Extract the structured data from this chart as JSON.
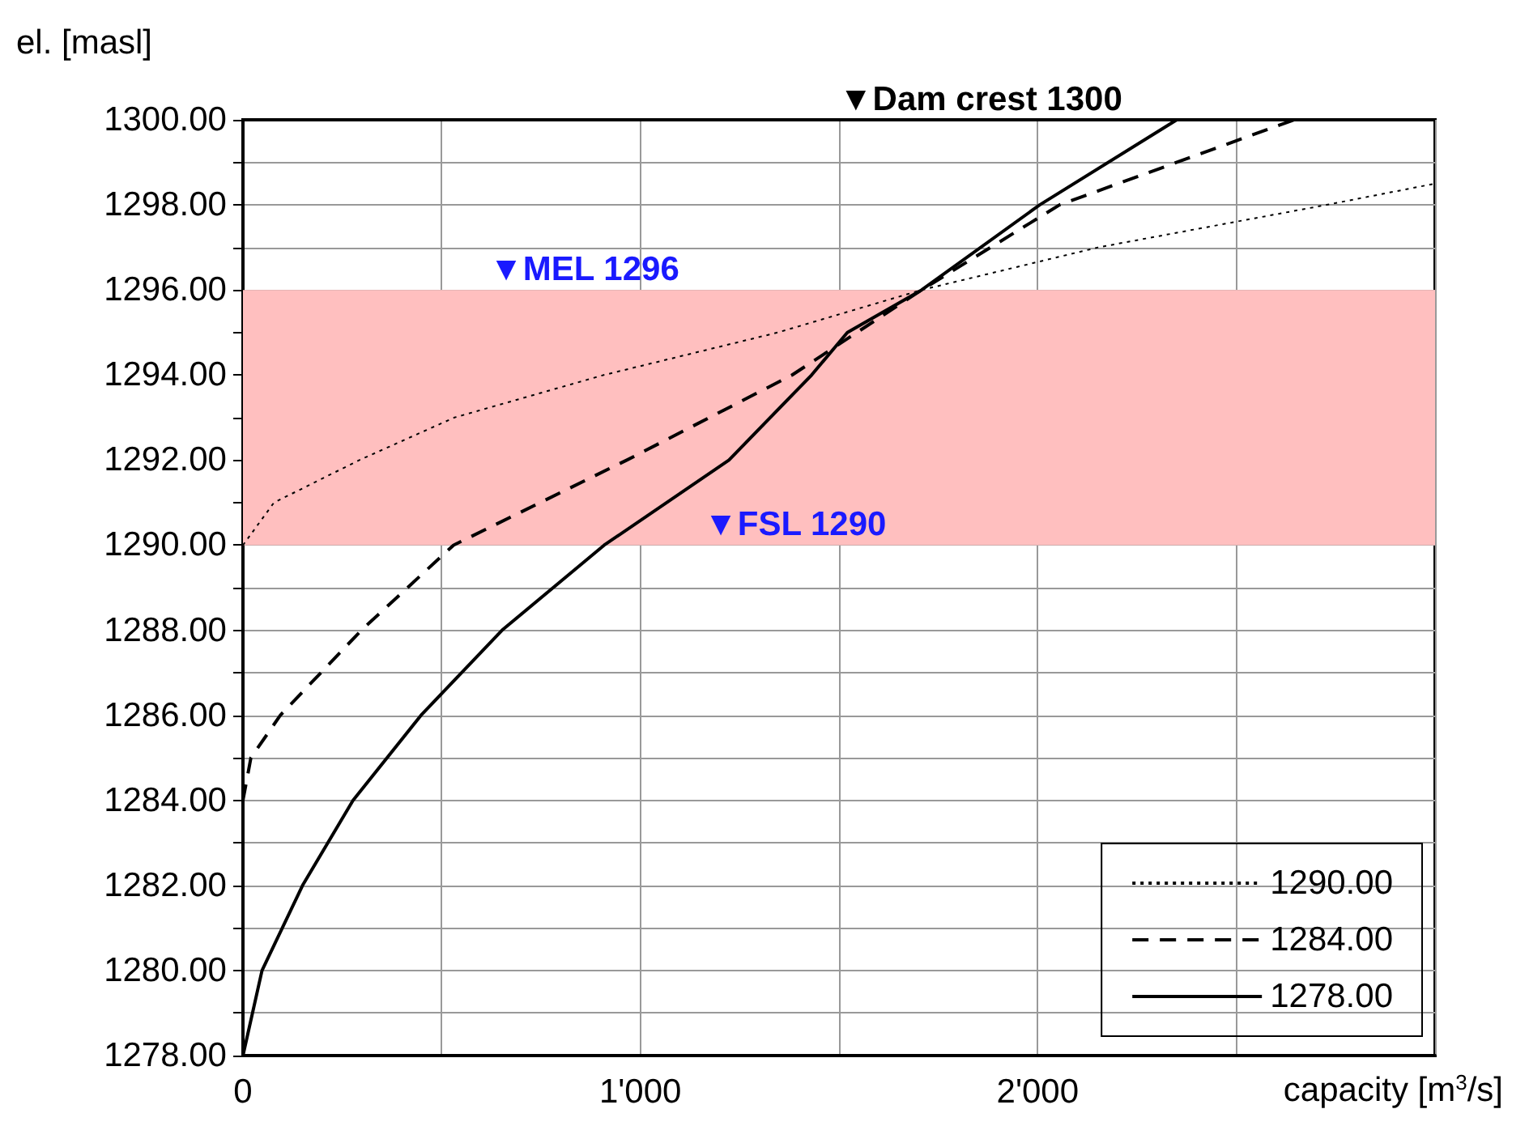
{
  "chart_data": {
    "type": "line",
    "xlabel": "capacity [m$^{3}$/s]",
    "ylabel": "el. [masl]",
    "xlim": [
      0,
      3000
    ],
    "ylim": [
      1278,
      1300
    ],
    "xticks": [
      0,
      {
        "value": 500,
        "label": null
      },
      {
        "value": 1000,
        "label": "1'000"
      },
      {
        "value": 1500,
        "label": null
      },
      {
        "value": 2000,
        "label": "2'000"
      },
      {
        "value": 2500,
        "label": null
      },
      {
        "value": 3000,
        "label": null
      }
    ],
    "yticks": [
      {
        "value": 1278,
        "label": "1278.00"
      },
      {
        "value": 1279,
        "label": null
      },
      {
        "value": 1280,
        "label": "1280.00"
      },
      {
        "value": 1281,
        "label": null
      },
      {
        "value": 1282,
        "label": "1282.00"
      },
      {
        "value": 1283,
        "label": null
      },
      {
        "value": 1284,
        "label": "1284.00"
      },
      {
        "value": 1285,
        "label": null
      },
      {
        "value": 1286,
        "label": "1286.00"
      },
      {
        "value": 1287,
        "label": null
      },
      {
        "value": 1288,
        "label": "1288.00"
      },
      {
        "value": 1289,
        "label": null
      },
      {
        "value": 1290,
        "label": "1290.00"
      },
      {
        "value": 1291,
        "label": null
      },
      {
        "value": 1292,
        "label": "1292.00"
      },
      {
        "value": 1293,
        "label": null
      },
      {
        "value": 1294,
        "label": "1294.00"
      },
      {
        "value": 1295,
        "label": null
      },
      {
        "value": 1296,
        "label": "1296.00"
      },
      {
        "value": 1297,
        "label": null
      },
      {
        "value": 1298,
        "label": "1298.00"
      },
      {
        "value": 1299,
        "label": null
      },
      {
        "value": 1300,
        "label": "1300.00"
      }
    ],
    "grid": true,
    "legend": "bottom right",
    "marker": "none",
    "series": [
      {
        "name": "1290.00",
        "color": "#000000",
        "line_style": "dotted",
        "x": [
          0,
          78,
          293,
          532,
          908,
          1346,
          1708,
          2152,
          2727,
          3000
        ],
        "values": [
          1290,
          1291,
          1292,
          1293,
          1294,
          1295,
          1296,
          1297,
          1298,
          1298.5
        ]
      },
      {
        "name": "1284.00",
        "color": "#000000",
        "line_style": "dashed",
        "x": [
          0,
          20,
          94,
          298,
          530,
          966,
          1382,
          1708,
          2055,
          2645
        ],
        "values": [
          1284,
          1285,
          1286,
          1288,
          1290,
          1292,
          1294,
          1296,
          1298,
          1300
        ]
      },
      {
        "name": "1278.00",
        "color": "#000000",
        "line_style": "solid",
        "x": [
          0,
          48,
          150,
          277,
          448,
          652,
          909,
          1223,
          1431,
          1521,
          1708,
          2005,
          2350
        ],
        "values": [
          1278,
          1280,
          1282,
          1284,
          1286,
          1288,
          1290,
          1292,
          1294,
          1295,
          1296,
          1298,
          1300
        ]
      }
    ],
    "bands": [
      {
        "axis": "y",
        "from": 1290,
        "to": 1296,
        "color": "#ffbfbf"
      }
    ],
    "ref_lines": [
      {
        "axis": "y",
        "value": 1300,
        "label": "▼Dam crest 1300"
      }
    ],
    "annotations": [
      {
        "text": "▼MEL 1296",
        "x": 620,
        "y": 1296
      },
      {
        "text": "▼FSL 1290",
        "x": 1160,
        "y": 1290
      }
    ]
  }
}
